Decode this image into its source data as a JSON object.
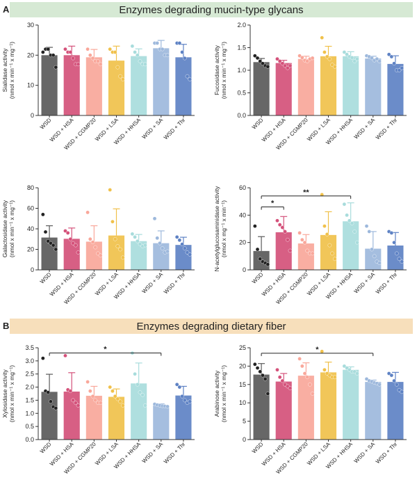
{
  "panels": [
    {
      "label": "A",
      "title": "Enzymes degrading mucin-type glycans"
    },
    {
      "label": "B",
      "title": "Enzymes degrading dietary fiber"
    }
  ],
  "chart_data": [
    {
      "type": "bar",
      "categories": [
        "WSD",
        "WSD + HSA",
        "WSD + CGMP20",
        "WSD + LSA",
        "WSD + HHSA",
        "WSD + SA",
        "WSD + Thr"
      ],
      "colors": [
        "#5a5a5a",
        "#d4517a",
        "#f9a79a",
        "#f0c14b",
        "#a8dcdc",
        "#9db8dc",
        "#5e82c4"
      ],
      "ylabel": [
        "Sialidase activity",
        "(nmol x min⁻¹ x mg⁻¹)"
      ],
      "ylim": [
        0,
        30
      ],
      "yticks": [
        0,
        10,
        20,
        30
      ],
      "values": [
        20.0,
        20.0,
        19.3,
        18.2,
        19.7,
        22.3,
        19.3
      ],
      "errors": [
        2.6,
        3.0,
        2.6,
        4.8,
        2.4,
        2.6,
        4.3
      ],
      "points": [
        [
          21,
          22,
          22,
          20,
          20,
          16
        ],
        [
          22,
          21,
          21,
          19,
          17,
          17
        ],
        [
          22,
          20,
          19,
          18,
          18,
          17
        ],
        [
          22,
          21,
          21,
          16,
          13,
          12
        ],
        [
          23,
          21,
          20,
          18,
          17,
          17
        ],
        [
          24,
          24,
          22,
          22,
          20,
          20
        ],
        [
          24,
          24,
          21,
          19,
          13,
          12
        ]
      ],
      "significance": []
    },
    {
      "type": "bar",
      "categories": [
        "WSD",
        "WSD + HSA",
        "WSD + CGMP20",
        "WSD + LSA",
        "WSD + HHSA",
        "WSD + SA",
        "WSD + Thr"
      ],
      "colors": [
        "#5a5a5a",
        "#d4517a",
        "#f9a79a",
        "#f0c14b",
        "#a8dcdc",
        "#9db8dc",
        "#5e82c4"
      ],
      "ylabel": [
        "Fucosidase activity",
        "(nmol x min⁻¹ x mg⁻¹)"
      ],
      "ylim": [
        0,
        2.0
      ],
      "yticks": [
        0,
        0.5,
        1.0,
        1.5,
        2.0
      ],
      "values": [
        1.18,
        1.16,
        1.25,
        1.31,
        1.31,
        1.26,
        1.14
      ],
      "errors": [
        0.08,
        0.06,
        0.06,
        0.22,
        0.1,
        0.05,
        0.18
      ],
      "points": [
        [
          1.32,
          1.27,
          1.2,
          1.15,
          1.1,
          1.08
        ],
        [
          1.25,
          1.2,
          1.15,
          1.1,
          1.05,
          1.1
        ],
        [
          1.32,
          1.28,
          1.22,
          1.2,
          1.25,
          1.27
        ],
        [
          1.72,
          1.4,
          1.3,
          1.25,
          1.12,
          1.08
        ],
        [
          1.4,
          1.35,
          1.3,
          1.28,
          1.2,
          1.25
        ],
        [
          1.32,
          1.3,
          1.27,
          1.22,
          1.25,
          1.2
        ],
        [
          1.35,
          1.3,
          1.15,
          1.0,
          1.0,
          1.05
        ]
      ],
      "significance": []
    },
    {
      "type": "bar",
      "categories": [
        "WSD",
        "WSD + HSA",
        "WSD + CGMP20",
        "WSD + LSA",
        "WSD + HHSA",
        "WSD + SA",
        "WSD + Thr"
      ],
      "colors": [
        "#5a5a5a",
        "#d4517a",
        "#f9a79a",
        "#f0c14b",
        "#a8dcdc",
        "#9db8dc",
        "#5e82c4"
      ],
      "ylabel": [
        "Galactosidase activity",
        "(nmol x min⁻¹ x mg⁻¹)"
      ],
      "ylim": [
        0,
        80
      ],
      "yticks": [
        0,
        20,
        40,
        60,
        80
      ],
      "values": [
        31.5,
        30.3,
        27.5,
        33.5,
        28.0,
        26.0,
        24.3
      ],
      "errors": [
        11.5,
        10.5,
        15.5,
        26.0,
        6.5,
        12.0,
        7.5
      ],
      "points": [
        [
          54,
          37,
          28,
          26,
          24,
          20
        ],
        [
          38,
          36,
          30,
          26,
          24,
          17
        ],
        [
          56,
          30,
          27,
          22,
          16,
          14
        ],
        [
          78,
          47,
          30,
          23,
          20,
          12
        ],
        [
          35,
          32,
          28,
          25,
          23,
          24
        ],
        [
          50,
          31,
          26,
          21,
          17,
          18
        ],
        [
          32,
          29,
          25,
          21,
          17,
          15
        ]
      ],
      "significance": []
    },
    {
      "type": "bar",
      "categories": [
        "WSD",
        "WSD + HSA",
        "WSD + CGMP20",
        "WSD + LSA",
        "WSD + HHSA",
        "WSD + SA",
        "WSD + Thr"
      ],
      "colors": [
        "#5a5a5a",
        "#d4517a",
        "#f9a79a",
        "#f0c14b",
        "#a8dcdc",
        "#9db8dc",
        "#5e82c4"
      ],
      "ylabel": [
        "N-acetylglucosaminidase activity",
        "(nmol x mg⁻¹ x min⁻¹)"
      ],
      "ylim": [
        0,
        60
      ],
      "yticks": [
        0,
        20,
        40,
        60
      ],
      "values": [
        13.8,
        27.5,
        19.3,
        25.5,
        35.5,
        15.5,
        17.8
      ],
      "errors": [
        10.5,
        11.5,
        6.5,
        17.0,
        13.5,
        12.5,
        9.5
      ],
      "points": [
        [
          32,
          15,
          8,
          6,
          5,
          4
        ],
        [
          36,
          33,
          31,
          28,
          22,
          14
        ],
        [
          27,
          22,
          20,
          14,
          12,
          12
        ],
        [
          55,
          32,
          26,
          18,
          12,
          8
        ],
        [
          48,
          40,
          36,
          34,
          28,
          20
        ],
        [
          32,
          28,
          15,
          10,
          6,
          5
        ],
        [
          28,
          27,
          20,
          12,
          8,
          6
        ]
      ],
      "significance": [
        {
          "from": 0,
          "to": 1,
          "label": "*",
          "y": 46
        },
        {
          "from": 0,
          "to": 4,
          "label": "**",
          "y": 54
        }
      ]
    },
    {
      "type": "bar",
      "categories": [
        "WSD",
        "WSD + HSA",
        "WSD + CGMP20",
        "WSD + LSA",
        "WSD + HHSA",
        "WSD + SA",
        "WSD + Thr"
      ],
      "colors": [
        "#5a5a5a",
        "#d4517a",
        "#f9a79a",
        "#f0c14b",
        "#a8dcdc",
        "#9db8dc",
        "#5e82c4"
      ],
      "ylabel": [
        "Xylosidase activity",
        "(nmol x min⁻¹ x mg⁻¹)"
      ],
      "ylim": [
        0,
        3.5
      ],
      "yticks": [
        0,
        0.5,
        1.0,
        1.5,
        2.0,
        2.5,
        3.0,
        3.5
      ],
      "values": [
        1.82,
        1.83,
        1.67,
        1.63,
        2.14,
        1.3,
        1.68
      ],
      "errors": [
        0.67,
        0.72,
        0.36,
        0.3,
        0.78,
        0.06,
        0.35
      ],
      "points": [
        [
          3.1,
          1.85,
          1.8,
          1.45,
          1.25,
          1.2
        ],
        [
          3.2,
          1.9,
          1.85,
          1.5,
          1.4,
          1.3
        ],
        [
          2.2,
          1.85,
          1.65,
          1.5,
          1.4,
          1.4
        ],
        [
          2.0,
          1.85,
          1.65,
          1.55,
          1.45,
          1.3
        ],
        [
          3.3,
          2.5,
          2.1,
          1.8,
          1.7,
          1.3
        ],
        [
          1.35,
          1.32,
          1.3,
          1.28,
          1.27,
          1.26
        ],
        [
          2.1,
          2.0,
          1.65,
          1.5,
          1.4,
          1.45
        ]
      ],
      "significance": [
        {
          "from": 0,
          "to": 5,
          "label": "*",
          "y": 3.3
        }
      ]
    },
    {
      "type": "bar",
      "categories": [
        "WSD",
        "WSD + HSA",
        "WSD + CGMP20",
        "WSD + LSA",
        "WSD + HHSA",
        "WSD + SA",
        "WSD + Thr"
      ],
      "colors": [
        "#5a5a5a",
        "#d4517a",
        "#f9a79a",
        "#f0c14b",
        "#a8dcdc",
        "#9db8dc",
        "#5e82c4"
      ],
      "ylabel": [
        "Arabinose activity",
        "(nmol x min⁻¹ x mg⁻¹)"
      ],
      "ylim": [
        0,
        25
      ],
      "yticks": [
        0,
        5,
        10,
        15,
        20,
        25
      ],
      "values": [
        17.7,
        15.8,
        17.4,
        18.3,
        19.0,
        15.7,
        15.7
      ],
      "errors": [
        3.0,
        2.2,
        3.5,
        2.8,
        0.8,
        0.5,
        2.6
      ],
      "points": [
        [
          20.5,
          19.5,
          18.5,
          17.5,
          16.5,
          12.5
        ],
        [
          19,
          17,
          16,
          15,
          14.5,
          14
        ],
        [
          22,
          20,
          18,
          17,
          15,
          12.5
        ],
        [
          24,
          19,
          18,
          17.5,
          17,
          17
        ],
        [
          20,
          19.5,
          19,
          18.5,
          18.5,
          18
        ],
        [
          16.5,
          16,
          15.8,
          15.5,
          15.3,
          15
        ],
        [
          18,
          17.5,
          16,
          15,
          13.5,
          13
        ]
      ],
      "significance": [
        {
          "from": 0,
          "to": 5,
          "label": "*",
          "y": 23.5
        }
      ]
    }
  ]
}
